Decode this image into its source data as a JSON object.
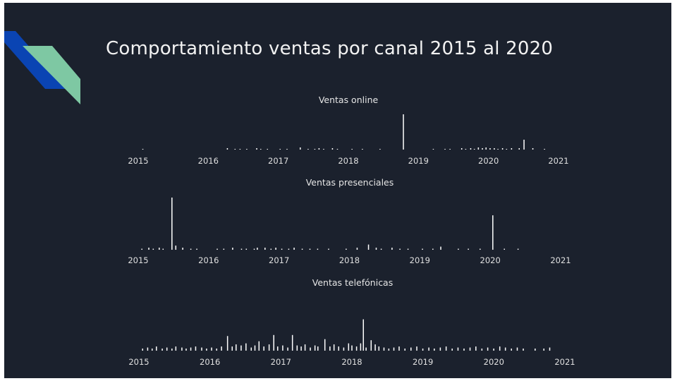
{
  "slide": {
    "title": "Comportamiento ventas por canal 2015 al 2020",
    "background_color": "#1b212d",
    "decor_colors": [
      "#0a44b3",
      "#7ec8a3"
    ]
  },
  "chart_data": [
    {
      "type": "bar",
      "title": "Ventas online",
      "x_range": [
        "2015-01-01",
        "2021-01-01"
      ],
      "x_ticks": [
        "2015",
        "2016",
        "2017",
        "2018",
        "2019",
        "2020",
        "2021"
      ],
      "y_range": [
        0,
        100
      ],
      "bar_color": "#ffffff",
      "points": [
        {
          "x": "2015-01-25",
          "y": 2
        },
        {
          "x": "2016-04-10",
          "y": 4
        },
        {
          "x": "2016-05-20",
          "y": 2
        },
        {
          "x": "2016-06-15",
          "y": 2
        },
        {
          "x": "2016-07-20",
          "y": 2
        },
        {
          "x": "2016-09-10",
          "y": 4
        },
        {
          "x": "2016-10-01",
          "y": 2
        },
        {
          "x": "2016-11-05",
          "y": 2
        },
        {
          "x": "2017-01-10",
          "y": 2
        },
        {
          "x": "2017-02-15",
          "y": 2
        },
        {
          "x": "2017-04-25",
          "y": 6
        },
        {
          "x": "2017-06-05",
          "y": 2
        },
        {
          "x": "2017-07-10",
          "y": 2
        },
        {
          "x": "2017-08-01",
          "y": 4
        },
        {
          "x": "2017-08-25",
          "y": 2
        },
        {
          "x": "2017-10-10",
          "y": 4
        },
        {
          "x": "2017-11-05",
          "y": 2
        },
        {
          "x": "2018-01-20",
          "y": 2
        },
        {
          "x": "2018-03-15",
          "y": 2
        },
        {
          "x": "2018-06-15",
          "y": 2
        },
        {
          "x": "2018-10-15",
          "y": 100
        },
        {
          "x": "2019-03-20",
          "y": 2
        },
        {
          "x": "2019-05-20",
          "y": 2
        },
        {
          "x": "2019-06-15",
          "y": 2
        },
        {
          "x": "2019-08-15",
          "y": 4
        },
        {
          "x": "2019-09-05",
          "y": 2
        },
        {
          "x": "2019-10-01",
          "y": 4
        },
        {
          "x": "2019-10-20",
          "y": 2
        },
        {
          "x": "2019-11-10",
          "y": 6
        },
        {
          "x": "2019-12-01",
          "y": 4
        },
        {
          "x": "2019-12-20",
          "y": 6
        },
        {
          "x": "2020-01-10",
          "y": 4
        },
        {
          "x": "2020-02-01",
          "y": 4
        },
        {
          "x": "2020-02-20",
          "y": 2
        },
        {
          "x": "2020-03-15",
          "y": 4
        },
        {
          "x": "2020-04-05",
          "y": 2
        },
        {
          "x": "2020-05-01",
          "y": 4
        },
        {
          "x": "2020-06-10",
          "y": 4
        },
        {
          "x": "2020-07-05",
          "y": 28
        },
        {
          "x": "2020-08-20",
          "y": 4
        },
        {
          "x": "2020-10-20",
          "y": 2
        }
      ]
    },
    {
      "type": "bar",
      "title": "Ventas presenciales",
      "x_range": [
        "2015-01-01",
        "2021-01-01"
      ],
      "x_ticks": [
        "2015",
        "2016",
        "2017",
        "2018",
        "2019",
        "2020",
        "2021"
      ],
      "y_range": [
        0,
        100
      ],
      "bar_color": "#ffffff",
      "points": [
        {
          "x": "2015-01-20",
          "y": 2
        },
        {
          "x": "2015-02-25",
          "y": 4
        },
        {
          "x": "2015-03-20",
          "y": 2
        },
        {
          "x": "2015-04-20",
          "y": 4
        },
        {
          "x": "2015-05-10",
          "y": 2
        },
        {
          "x": "2015-06-25",
          "y": 100
        },
        {
          "x": "2015-07-15",
          "y": 8
        },
        {
          "x": "2015-08-20",
          "y": 4
        },
        {
          "x": "2015-10-01",
          "y": 2
        },
        {
          "x": "2015-11-01",
          "y": 2
        },
        {
          "x": "2016-02-15",
          "y": 2
        },
        {
          "x": "2016-03-20",
          "y": 2
        },
        {
          "x": "2016-05-05",
          "y": 4
        },
        {
          "x": "2016-06-20",
          "y": 2
        },
        {
          "x": "2016-07-15",
          "y": 2
        },
        {
          "x": "2016-08-25",
          "y": 2
        },
        {
          "x": "2016-09-10",
          "y": 4
        },
        {
          "x": "2016-10-20",
          "y": 4
        },
        {
          "x": "2016-11-20",
          "y": 2
        },
        {
          "x": "2016-12-15",
          "y": 4
        },
        {
          "x": "2017-01-15",
          "y": 2
        },
        {
          "x": "2017-02-20",
          "y": 2
        },
        {
          "x": "2017-03-20",
          "y": 4
        },
        {
          "x": "2017-05-01",
          "y": 2
        },
        {
          "x": "2017-06-10",
          "y": 2
        },
        {
          "x": "2017-07-20",
          "y": 2
        },
        {
          "x": "2017-09-15",
          "y": 2
        },
        {
          "x": "2017-12-15",
          "y": 2
        },
        {
          "x": "2018-02-10",
          "y": 4
        },
        {
          "x": "2018-04-10",
          "y": 10
        },
        {
          "x": "2018-05-20",
          "y": 4
        },
        {
          "x": "2018-06-15",
          "y": 2
        },
        {
          "x": "2018-08-10",
          "y": 4
        },
        {
          "x": "2018-09-20",
          "y": 2
        },
        {
          "x": "2018-11-01",
          "y": 2
        },
        {
          "x": "2019-01-15",
          "y": 2
        },
        {
          "x": "2019-03-10",
          "y": 2
        },
        {
          "x": "2019-04-20",
          "y": 6
        },
        {
          "x": "2019-07-20",
          "y": 2
        },
        {
          "x": "2019-09-10",
          "y": 2
        },
        {
          "x": "2019-11-10",
          "y": 2
        },
        {
          "x": "2020-01-15",
          "y": 66
        },
        {
          "x": "2020-03-15",
          "y": 2
        },
        {
          "x": "2020-05-25",
          "y": 2
        }
      ]
    },
    {
      "type": "bar",
      "title": "Ventas telefónicas",
      "x_range": [
        "2015-01-01",
        "2021-01-01"
      ],
      "x_ticks": [
        "2015",
        "2016",
        "2017",
        "2018",
        "2019",
        "2020",
        "2021"
      ],
      "y_range": [
        0,
        100
      ],
      "bar_color": "#ffffff",
      "points": [
        {
          "x": "2015-01-20",
          "y": 4
        },
        {
          "x": "2015-02-15",
          "y": 6
        },
        {
          "x": "2015-03-10",
          "y": 4
        },
        {
          "x": "2015-04-01",
          "y": 8
        },
        {
          "x": "2015-05-01",
          "y": 4
        },
        {
          "x": "2015-05-25",
          "y": 6
        },
        {
          "x": "2015-06-20",
          "y": 4
        },
        {
          "x": "2015-07-10",
          "y": 8
        },
        {
          "x": "2015-08-10",
          "y": 6
        },
        {
          "x": "2015-09-01",
          "y": 4
        },
        {
          "x": "2015-09-25",
          "y": 6
        },
        {
          "x": "2015-10-20",
          "y": 8
        },
        {
          "x": "2015-11-20",
          "y": 6
        },
        {
          "x": "2015-12-15",
          "y": 4
        },
        {
          "x": "2016-01-10",
          "y": 6
        },
        {
          "x": "2016-02-05",
          "y": 4
        },
        {
          "x": "2016-03-01",
          "y": 8
        },
        {
          "x": "2016-04-01",
          "y": 28
        },
        {
          "x": "2016-04-25",
          "y": 8
        },
        {
          "x": "2016-05-15",
          "y": 12
        },
        {
          "x": "2016-06-10",
          "y": 10
        },
        {
          "x": "2016-07-05",
          "y": 14
        },
        {
          "x": "2016-08-01",
          "y": 6
        },
        {
          "x": "2016-08-20",
          "y": 10
        },
        {
          "x": "2016-09-10",
          "y": 18
        },
        {
          "x": "2016-10-05",
          "y": 8
        },
        {
          "x": "2016-11-01",
          "y": 12
        },
        {
          "x": "2016-11-25",
          "y": 30
        },
        {
          "x": "2016-12-15",
          "y": 8
        },
        {
          "x": "2017-01-10",
          "y": 10
        },
        {
          "x": "2017-02-05",
          "y": 6
        },
        {
          "x": "2017-03-01",
          "y": 30
        },
        {
          "x": "2017-03-25",
          "y": 10
        },
        {
          "x": "2017-04-15",
          "y": 8
        },
        {
          "x": "2017-05-05",
          "y": 12
        },
        {
          "x": "2017-06-01",
          "y": 6
        },
        {
          "x": "2017-06-25",
          "y": 10
        },
        {
          "x": "2017-07-10",
          "y": 8
        },
        {
          "x": "2017-08-15",
          "y": 22
        },
        {
          "x": "2017-09-10",
          "y": 8
        },
        {
          "x": "2017-10-01",
          "y": 12
        },
        {
          "x": "2017-10-25",
          "y": 8
        },
        {
          "x": "2017-11-20",
          "y": 6
        },
        {
          "x": "2017-12-15",
          "y": 14
        },
        {
          "x": "2018-01-01",
          "y": 10
        },
        {
          "x": "2018-01-25",
          "y": 8
        },
        {
          "x": "2018-02-15",
          "y": 14
        },
        {
          "x": "2018-03-01",
          "y": 60
        },
        {
          "x": "2018-03-15",
          "y": 6
        },
        {
          "x": "2018-04-10",
          "y": 20
        },
        {
          "x": "2018-05-01",
          "y": 12
        },
        {
          "x": "2018-05-20",
          "y": 8
        },
        {
          "x": "2018-06-15",
          "y": 6
        },
        {
          "x": "2018-07-10",
          "y": 4
        },
        {
          "x": "2018-08-05",
          "y": 6
        },
        {
          "x": "2018-09-01",
          "y": 8
        },
        {
          "x": "2018-10-01",
          "y": 4
        },
        {
          "x": "2018-11-01",
          "y": 6
        },
        {
          "x": "2018-12-01",
          "y": 8
        },
        {
          "x": "2019-01-01",
          "y": 4
        },
        {
          "x": "2019-02-01",
          "y": 6
        },
        {
          "x": "2019-03-01",
          "y": 4
        },
        {
          "x": "2019-04-01",
          "y": 6
        },
        {
          "x": "2019-05-01",
          "y": 8
        },
        {
          "x": "2019-06-01",
          "y": 4
        },
        {
          "x": "2019-07-01",
          "y": 6
        },
        {
          "x": "2019-08-01",
          "y": 4
        },
        {
          "x": "2019-09-01",
          "y": 6
        },
        {
          "x": "2019-10-01",
          "y": 8
        },
        {
          "x": "2019-11-01",
          "y": 4
        },
        {
          "x": "2019-12-01",
          "y": 6
        },
        {
          "x": "2020-01-01",
          "y": 4
        },
        {
          "x": "2020-02-01",
          "y": 8
        },
        {
          "x": "2020-03-01",
          "y": 6
        },
        {
          "x": "2020-04-01",
          "y": 4
        },
        {
          "x": "2020-05-01",
          "y": 6
        },
        {
          "x": "2020-06-01",
          "y": 4
        },
        {
          "x": "2020-08-01",
          "y": 4
        },
        {
          "x": "2020-09-15",
          "y": 4
        },
        {
          "x": "2020-10-15",
          "y": 6
        }
      ]
    }
  ]
}
